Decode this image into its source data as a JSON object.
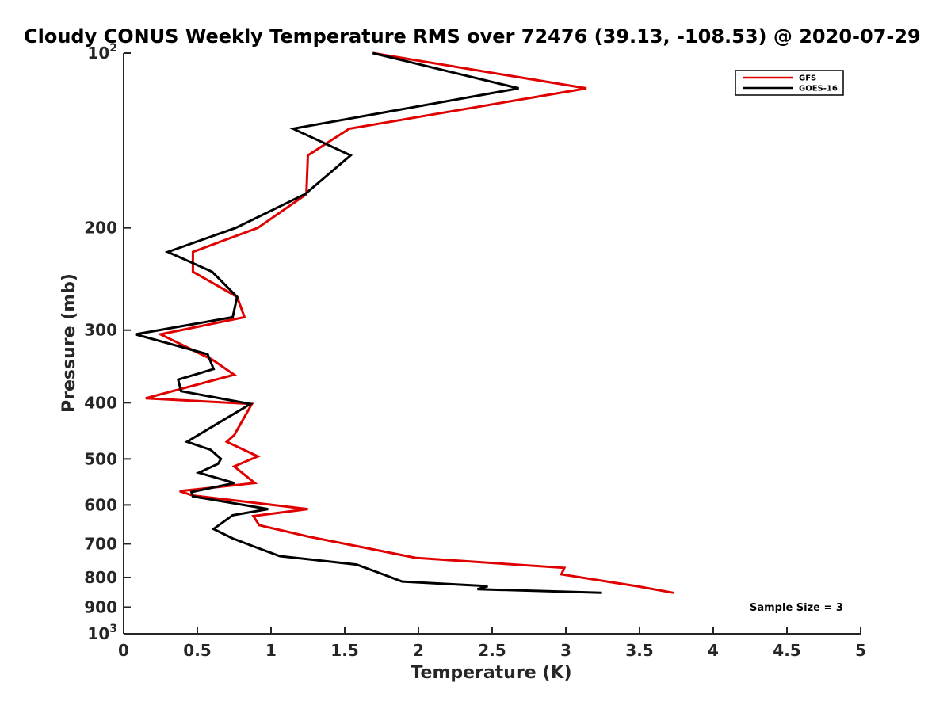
{
  "chart_data": {
    "type": "line",
    "title": "Cloudy CONUS Weekly Temperature RMS over 72476 (39.13, -108.53) @ 2020-07-29",
    "xlabel": "Temperature (K)",
    "ylabel": "Pressure (mb)",
    "xlim": [
      0,
      5
    ],
    "ylim": [
      100,
      1000
    ],
    "y_scale": "log",
    "y_reversed": true,
    "grid": false,
    "legend_position": "top-right",
    "x_ticks": [
      "0",
      "0.5",
      "1",
      "1.5",
      "2",
      "2.5",
      "3",
      "3.5",
      "4",
      "4.5",
      "5"
    ],
    "y_ticks": [
      {
        "value": 100,
        "base": "10",
        "exp": "2"
      },
      {
        "value": 200,
        "label": "200"
      },
      {
        "value": 300,
        "label": "300"
      },
      {
        "value": 400,
        "label": "400"
      },
      {
        "value": 500,
        "label": "500"
      },
      {
        "value": 600,
        "label": "600"
      },
      {
        "value": 700,
        "label": "700"
      },
      {
        "value": 800,
        "label": "800"
      },
      {
        "value": 900,
        "label": "900"
      },
      {
        "value": 1000,
        "base": "10",
        "exp": "3"
      }
    ],
    "annotation": "Sample Size = 3",
    "series": [
      {
        "name": "GFS",
        "color": "#e00000",
        "points": [
          [
            1.69,
            100
          ],
          [
            3.14,
            115
          ],
          [
            1.53,
            135
          ],
          [
            1.25,
            150
          ],
          [
            1.24,
            175
          ],
          [
            0.91,
            200
          ],
          [
            0.47,
            220
          ],
          [
            0.47,
            238
          ],
          [
            0.77,
            263
          ],
          [
            0.82,
            285
          ],
          [
            0.25,
            305
          ],
          [
            0.6,
            337
          ],
          [
            0.75,
            358
          ],
          [
            0.15,
            393
          ],
          [
            0.87,
            402
          ],
          [
            0.75,
            455
          ],
          [
            0.7,
            467
          ],
          [
            0.91,
            495
          ],
          [
            0.75,
            515
          ],
          [
            0.89,
            550
          ],
          [
            0.38,
            568
          ],
          [
            0.47,
            578
          ],
          [
            1.25,
            610
          ],
          [
            0.88,
            627
          ],
          [
            0.92,
            650
          ],
          [
            1.25,
            680
          ],
          [
            1.65,
            712
          ],
          [
            1.98,
            740
          ],
          [
            2.99,
            770
          ],
          [
            2.97,
            790
          ],
          [
            3.28,
            813
          ],
          [
            3.48,
            828
          ],
          [
            3.73,
            850
          ]
        ]
      },
      {
        "name": "GOES-16",
        "color": "#000000",
        "points": [
          [
            1.69,
            100
          ],
          [
            2.68,
            115
          ],
          [
            1.15,
            135
          ],
          [
            1.54,
            150
          ],
          [
            1.23,
            175
          ],
          [
            0.76,
            200
          ],
          [
            0.3,
            220
          ],
          [
            0.6,
            238
          ],
          [
            0.77,
            263
          ],
          [
            0.74,
            285
          ],
          [
            0.08,
            305
          ],
          [
            0.57,
            330
          ],
          [
            0.61,
            350
          ],
          [
            0.37,
            365
          ],
          [
            0.39,
            382
          ],
          [
            0.86,
            402
          ],
          [
            0.6,
            440
          ],
          [
            0.43,
            467
          ],
          [
            0.59,
            482
          ],
          [
            0.66,
            500
          ],
          [
            0.64,
            510
          ],
          [
            0.51,
            528
          ],
          [
            0.75,
            550
          ],
          [
            0.46,
            570
          ],
          [
            0.47,
            580
          ],
          [
            0.98,
            610
          ],
          [
            0.74,
            625
          ],
          [
            0.61,
            660
          ],
          [
            0.74,
            685
          ],
          [
            0.9,
            710
          ],
          [
            1.06,
            735
          ],
          [
            1.58,
            760
          ],
          [
            1.76,
            790
          ],
          [
            1.89,
            813
          ],
          [
            2.47,
            828
          ],
          [
            2.4,
            838
          ],
          [
            3.24,
            850
          ]
        ]
      }
    ]
  }
}
